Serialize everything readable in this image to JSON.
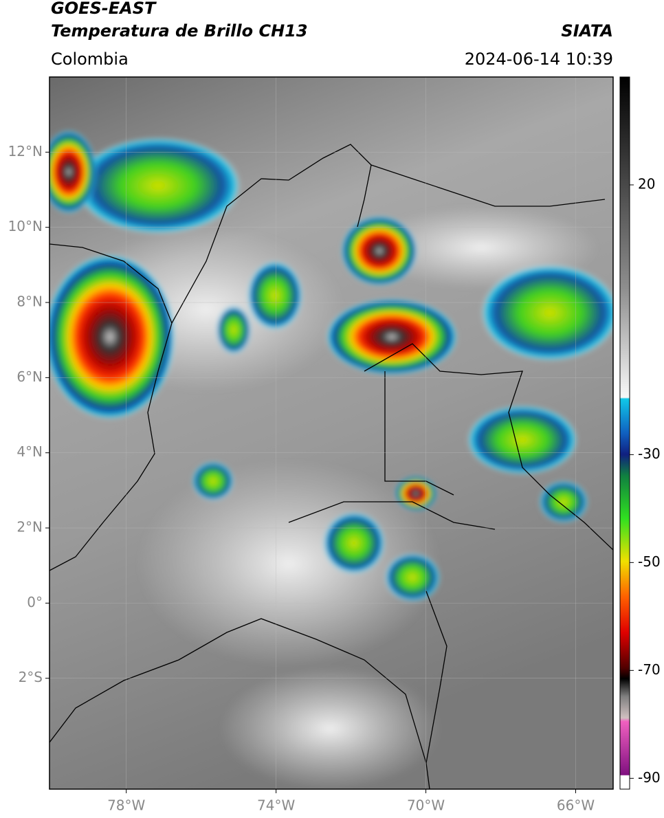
{
  "header": {
    "title": "GOES-EAST",
    "subtitle": "Temperatura de Brillo CH13",
    "source": "SIATA",
    "region": "Colombia",
    "datetime": "2024-06-14 10:39"
  },
  "map": {
    "xlim": [
      -80.05,
      -65
    ],
    "ylim": [
      -4.95,
      14
    ],
    "xticks": [
      {
        "value": -78,
        "label": "78°W"
      },
      {
        "value": -74,
        "label": "74°W"
      },
      {
        "value": -70,
        "label": "70°W"
      },
      {
        "value": -66,
        "label": "66°W"
      }
    ],
    "yticks": [
      {
        "value": 12,
        "label": "12°N"
      },
      {
        "value": 10,
        "label": "10°N"
      },
      {
        "value": 8,
        "label": "8°N"
      },
      {
        "value": 6,
        "label": "6°N"
      },
      {
        "value": 4,
        "label": "4°N"
      },
      {
        "value": 2,
        "label": "2°N"
      },
      {
        "value": 0,
        "label": "0°"
      },
      {
        "value": -2,
        "label": "2°S"
      }
    ],
    "grid": true
  },
  "colorbar": {
    "lim": [
      -92,
      40
    ],
    "ticks": [
      20,
      -30,
      -50,
      -70,
      -90
    ]
  }
}
